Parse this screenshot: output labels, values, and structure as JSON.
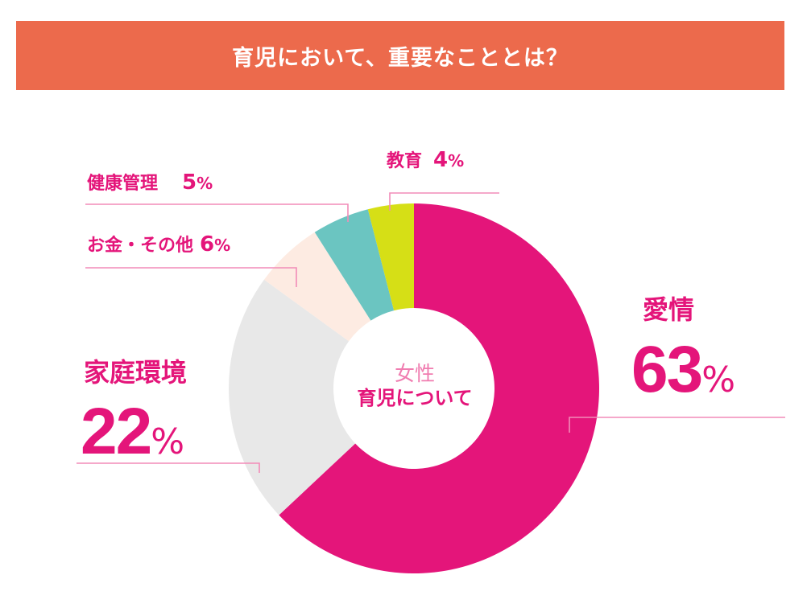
{
  "header": {
    "title": "育児において、重要なこととは？"
  },
  "colors": {
    "header_bg": "#ec6a4c",
    "label_text": "#e4157a",
    "leader_line": "#f28cb8"
  },
  "center": {
    "line1": "女性",
    "line2": "育児について"
  },
  "chart_data": {
    "type": "pie",
    "donut": true,
    "title": "育児において、重要なこととは？",
    "unit": "%",
    "slices": [
      {
        "label": "愛情",
        "value": 63,
        "color": "#e4157a"
      },
      {
        "label": "家庭環境",
        "value": 22,
        "color": "#e8e8e8"
      },
      {
        "label": "お金・その他",
        "value": 6,
        "color": "#fdebe2"
      },
      {
        "label": "健康管理",
        "value": 5,
        "color": "#6bc5c1"
      },
      {
        "label": "教育",
        "value": 4,
        "color": "#d6df16"
      }
    ]
  }
}
